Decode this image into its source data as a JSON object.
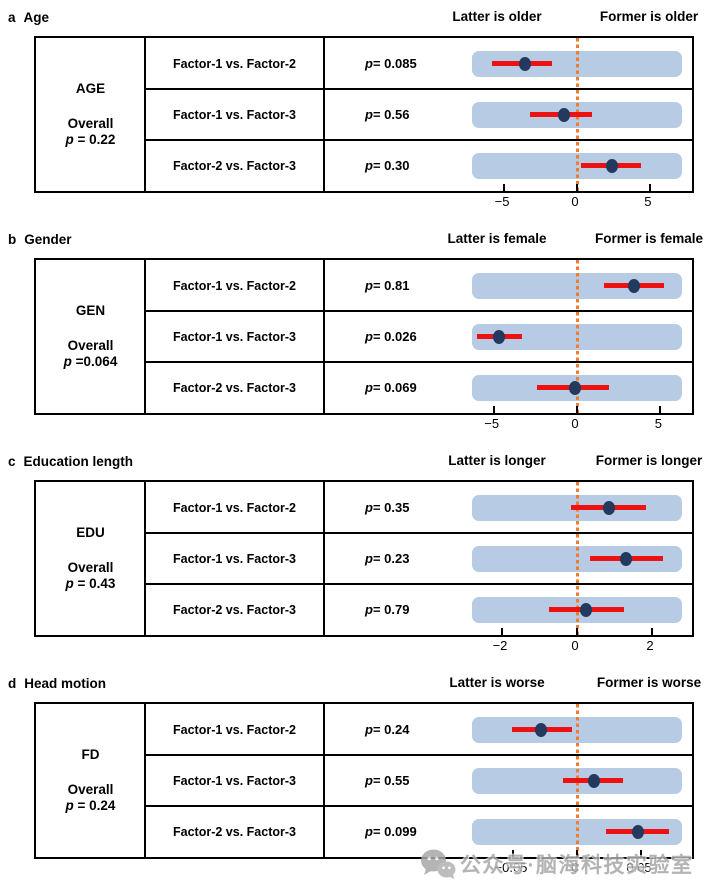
{
  "colors": {
    "band": "#b8cbe4",
    "ci_bar": "#ee1111",
    "point": "#233a5e",
    "zero_line": "#ed7d31",
    "border": "#000000",
    "watermark_gray": "#a8a8a8"
  },
  "watermark": {
    "icon": "wechat-icon",
    "text": "公众号·脑海科技实验室"
  },
  "chart_data": {
    "type": "forest",
    "zero_reference": 0,
    "panels": [
      {
        "letter": "a",
        "title": "Age",
        "header_left": "Latter is older",
        "header_right": "Former is older",
        "group_label": "AGE",
        "overall_label": "Overall",
        "overall_p": "p = 0.22",
        "xlim": [
          -7.2,
          7.2
        ],
        "ticks": [
          -5,
          0,
          5
        ],
        "tick_labels": [
          "−5",
          "0",
          "5"
        ],
        "rows": [
          {
            "comparison": "Factor-1 vs. Factor-2",
            "p_label": "p = 0.085",
            "estimate": -3.6,
            "ci": [
              -5.8,
              -1.7
            ]
          },
          {
            "comparison": "Factor-1 vs. Factor-3",
            "p_label": "p = 0.56",
            "estimate": -0.9,
            "ci": [
              -3.2,
              1.0
            ]
          },
          {
            "comparison": "Factor-2 vs. Factor-3",
            "p_label": "p = 0.30",
            "estimate": 2.4,
            "ci": [
              0.3,
              4.4
            ]
          }
        ]
      },
      {
        "letter": "b",
        "title": "Gender",
        "header_left": "Latter is female",
        "header_right": "Former is female",
        "group_label": "GEN",
        "overall_label": "Overall",
        "overall_p": "p =0.064",
        "xlim": [
          -6.3,
          6.3
        ],
        "ticks": [
          -5,
          0,
          5
        ],
        "tick_labels": [
          "−5",
          "0",
          "5"
        ],
        "rows": [
          {
            "comparison": "Factor-1 vs. Factor-2",
            "p_label": "p = 0.81",
            "estimate": 3.4,
            "ci": [
              1.6,
              5.2
            ]
          },
          {
            "comparison": "Factor-1 vs. Factor-3",
            "p_label": "p = 0.026",
            "estimate": -4.7,
            "ci": [
              -6.0,
              -3.3
            ]
          },
          {
            "comparison": "Factor-2 vs. Factor-3",
            "p_label": "p = 0.069",
            "estimate": -0.1,
            "ci": [
              -2.4,
              1.9
            ]
          }
        ]
      },
      {
        "letter": "c",
        "title": "Education length",
        "header_left": "Latter is longer",
        "header_right": "Former is longer",
        "group_label": "EDU",
        "overall_label": "Overall",
        "overall_p": "p = 0.43",
        "xlim": [
          -2.8,
          2.8
        ],
        "ticks": [
          -2,
          0,
          2
        ],
        "tick_labels": [
          "−2",
          "0",
          "2"
        ],
        "rows": [
          {
            "comparison": "Factor-1 vs. Factor-2",
            "p_label": "p = 0.35",
            "estimate": 0.84,
            "ci": [
              -0.17,
              1.84
            ]
          },
          {
            "comparison": "Factor-1 vs. Factor-3",
            "p_label": "p = 0.23",
            "estimate": 1.3,
            "ci": [
              0.35,
              2.3
            ]
          },
          {
            "comparison": "Factor-2 vs. Factor-3",
            "p_label": "p = 0.79",
            "estimate": 0.25,
            "ci": [
              -0.75,
              1.24
            ]
          }
        ]
      },
      {
        "letter": "d",
        "title": "Head motion",
        "header_left": "Latter is worse",
        "header_right": "Former is worse",
        "group_label": "FD",
        "overall_label": "Overall",
        "overall_p": "p = 0.24",
        "xlim": [
          -0.082,
          0.082
        ],
        "ticks": [
          -0.05,
          0,
          0.05
        ],
        "tick_labels": [
          "−0.05",
          "0",
          "0.05"
        ],
        "rows": [
          {
            "comparison": "Factor-1 vs. Factor-2",
            "p_label": "p = 0.24",
            "estimate": -0.028,
            "ci": [
              -0.051,
              -0.004
            ]
          },
          {
            "comparison": "Factor-1 vs. Factor-3",
            "p_label": "p = 0.55",
            "estimate": 0.013,
            "ci": [
              -0.011,
              0.036
            ]
          },
          {
            "comparison": "Factor-2 vs. Factor-3",
            "p_label": "p = 0.099",
            "estimate": 0.048,
            "ci": [
              0.023,
              0.072
            ]
          }
        ]
      }
    ]
  }
}
